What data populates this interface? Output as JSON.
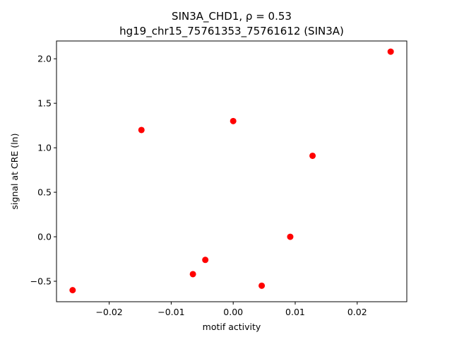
{
  "chart_data": {
    "type": "scatter",
    "title_line1": "SIN3A_CHD1, ρ = 0.53",
    "title_line2": "hg19_chr15_75761353_75761612 (SIN3A)",
    "xlabel": "motif activity",
    "ylabel": "signal at CRE (ln)",
    "xlim": [
      -0.0285,
      0.028
    ],
    "ylim": [
      -0.73,
      2.2
    ],
    "x_ticks": [
      -0.02,
      -0.01,
      0.0,
      0.01,
      0.02
    ],
    "x_tick_labels": [
      "−0.02",
      "−0.01",
      "0.00",
      "0.01",
      "0.02"
    ],
    "y_ticks": [
      -0.5,
      0.0,
      0.5,
      1.0,
      1.5,
      2.0
    ],
    "y_tick_labels": [
      "−0.5",
      "0.0",
      "0.5",
      "1.0",
      "1.5",
      "2.0"
    ],
    "grid": false,
    "marker_color": "#ff0000",
    "points": [
      {
        "x": -0.0259,
        "y": -0.6
      },
      {
        "x": -0.0148,
        "y": 1.2
      },
      {
        "x": -0.0065,
        "y": -0.42
      },
      {
        "x": -0.0045,
        "y": -0.26
      },
      {
        "x": 0.0,
        "y": 1.3
      },
      {
        "x": 0.0046,
        "y": -0.55
      },
      {
        "x": 0.0092,
        "y": 0.0
      },
      {
        "x": 0.0128,
        "y": 0.91
      },
      {
        "x": 0.0254,
        "y": 2.08
      }
    ]
  }
}
